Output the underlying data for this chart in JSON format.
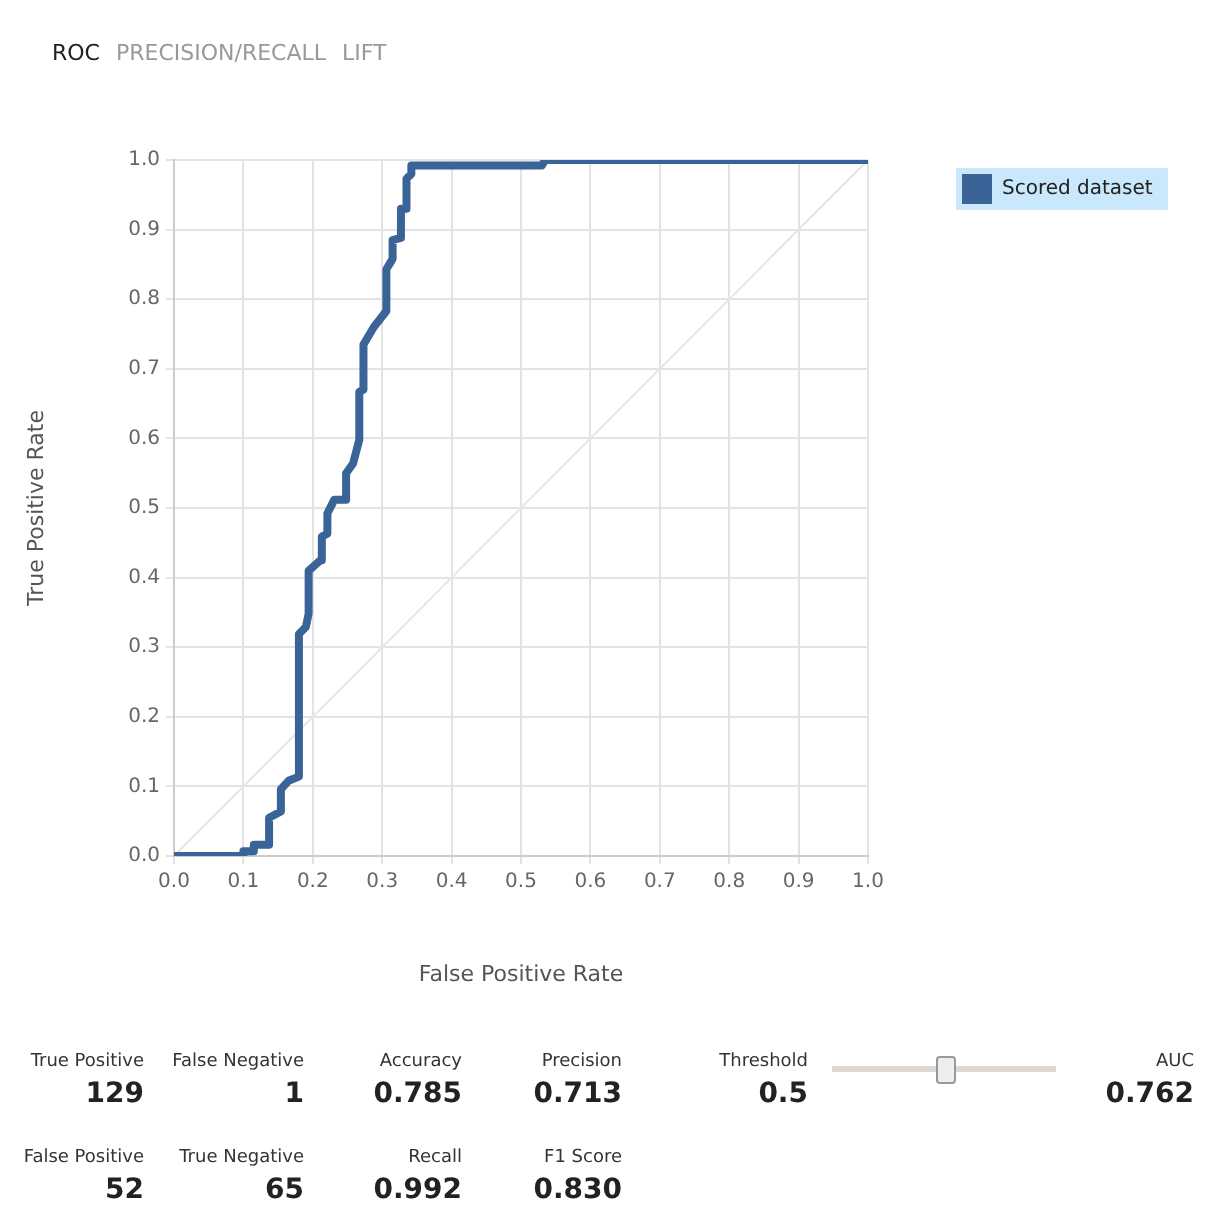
{
  "chart_data": {
    "type": "line",
    "xlabel": "False Positive Rate",
    "ylabel": "True Positive Rate",
    "xlim": [
      0,
      1
    ],
    "ylim": [
      0,
      1
    ],
    "xticks": [
      {
        "value": 0,
        "label": "0.0"
      },
      0.1,
      0.2,
      0.3,
      0.4,
      0.5,
      0.6,
      0.7,
      0.8,
      0.9,
      {
        "value": 1,
        "label": "1.0"
      }
    ],
    "yticks": [
      {
        "value": 0,
        "label": "0.0"
      },
      0.1,
      0.2,
      0.3,
      0.4,
      0.5,
      0.6,
      0.7,
      0.8,
      0.9,
      {
        "value": 1,
        "label": "1.0"
      }
    ],
    "grid": true,
    "legend": "right",
    "marker": "none",
    "line_style": "solid",
    "series": [
      {
        "name": "Scored dataset",
        "color": "#3a6398",
        "x": [
          0,
          0.1,
          0.1,
          0.115,
          0.115,
          0.137,
          0.137,
          0.154,
          0.154,
          0.165,
          0.18,
          0.18,
          0.19,
          0.194,
          0.194,
          0.211,
          0.213,
          0.221,
          0.221,
          0.231,
          0.248,
          0.248,
          0.258,
          0.267,
          0.267,
          0.273,
          0.273,
          0.288,
          0.306,
          0.306,
          0.315,
          0.315,
          0.327,
          0.327,
          0.335,
          0.335,
          0.342,
          0.342,
          0.53,
          0.535,
          1
        ],
        "values": [
          0,
          0,
          0.007,
          0.007,
          0.016,
          0.016,
          0.055,
          0.064,
          0.096,
          0.108,
          0.114,
          0.319,
          0.329,
          0.348,
          0.41,
          0.425,
          0.459,
          0.463,
          0.492,
          0.512,
          0.512,
          0.55,
          0.564,
          0.598,
          0.667,
          0.67,
          0.735,
          0.76,
          0.783,
          0.843,
          0.858,
          0.885,
          0.888,
          0.93,
          0.93,
          0.973,
          0.98,
          0.992,
          0.992,
          1,
          1
        ]
      },
      {
        "color": "#e6e6e6",
        "x": [
          0,
          1
        ],
        "values": [
          0,
          1
        ]
      }
    ],
    "annotations": [
      "ROC",
      "PRECISION/RECALL",
      "LIFT",
      "True Positive",
      "129",
      "False Negative",
      "1",
      "Accuracy",
      "0.785",
      "Precision",
      "0.713",
      "Threshold",
      "0.5",
      "AUC",
      "0.762",
      "False Positive",
      "52",
      "True Negative",
      "65",
      "Recall",
      "0.992",
      "F1 Score",
      "0.830"
    ]
  }
}
